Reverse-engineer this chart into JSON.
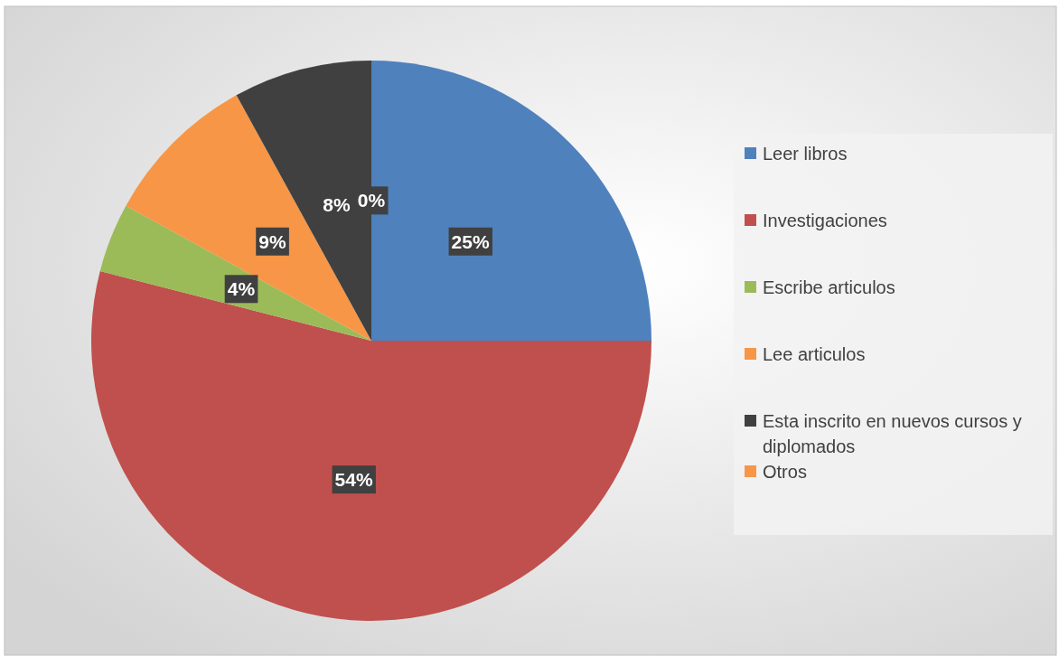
{
  "chart_data": {
    "type": "pie",
    "categories": [
      "Leer libros",
      "Investigaciones",
      "Escribe articulos",
      "Lee articulos",
      "Esta inscrito en nuevos cursos y diplomados",
      "Otros"
    ],
    "values": [
      25,
      54,
      4,
      9,
      8,
      0
    ],
    "colors": [
      "#4f81bd",
      "#c0504d",
      "#9bbb59",
      "#f79646",
      "#404040",
      "#f79646"
    ],
    "value_labels": [
      "25%",
      "54%",
      "4%",
      "9%",
      "8%",
      "0%"
    ],
    "legend": "right"
  }
}
